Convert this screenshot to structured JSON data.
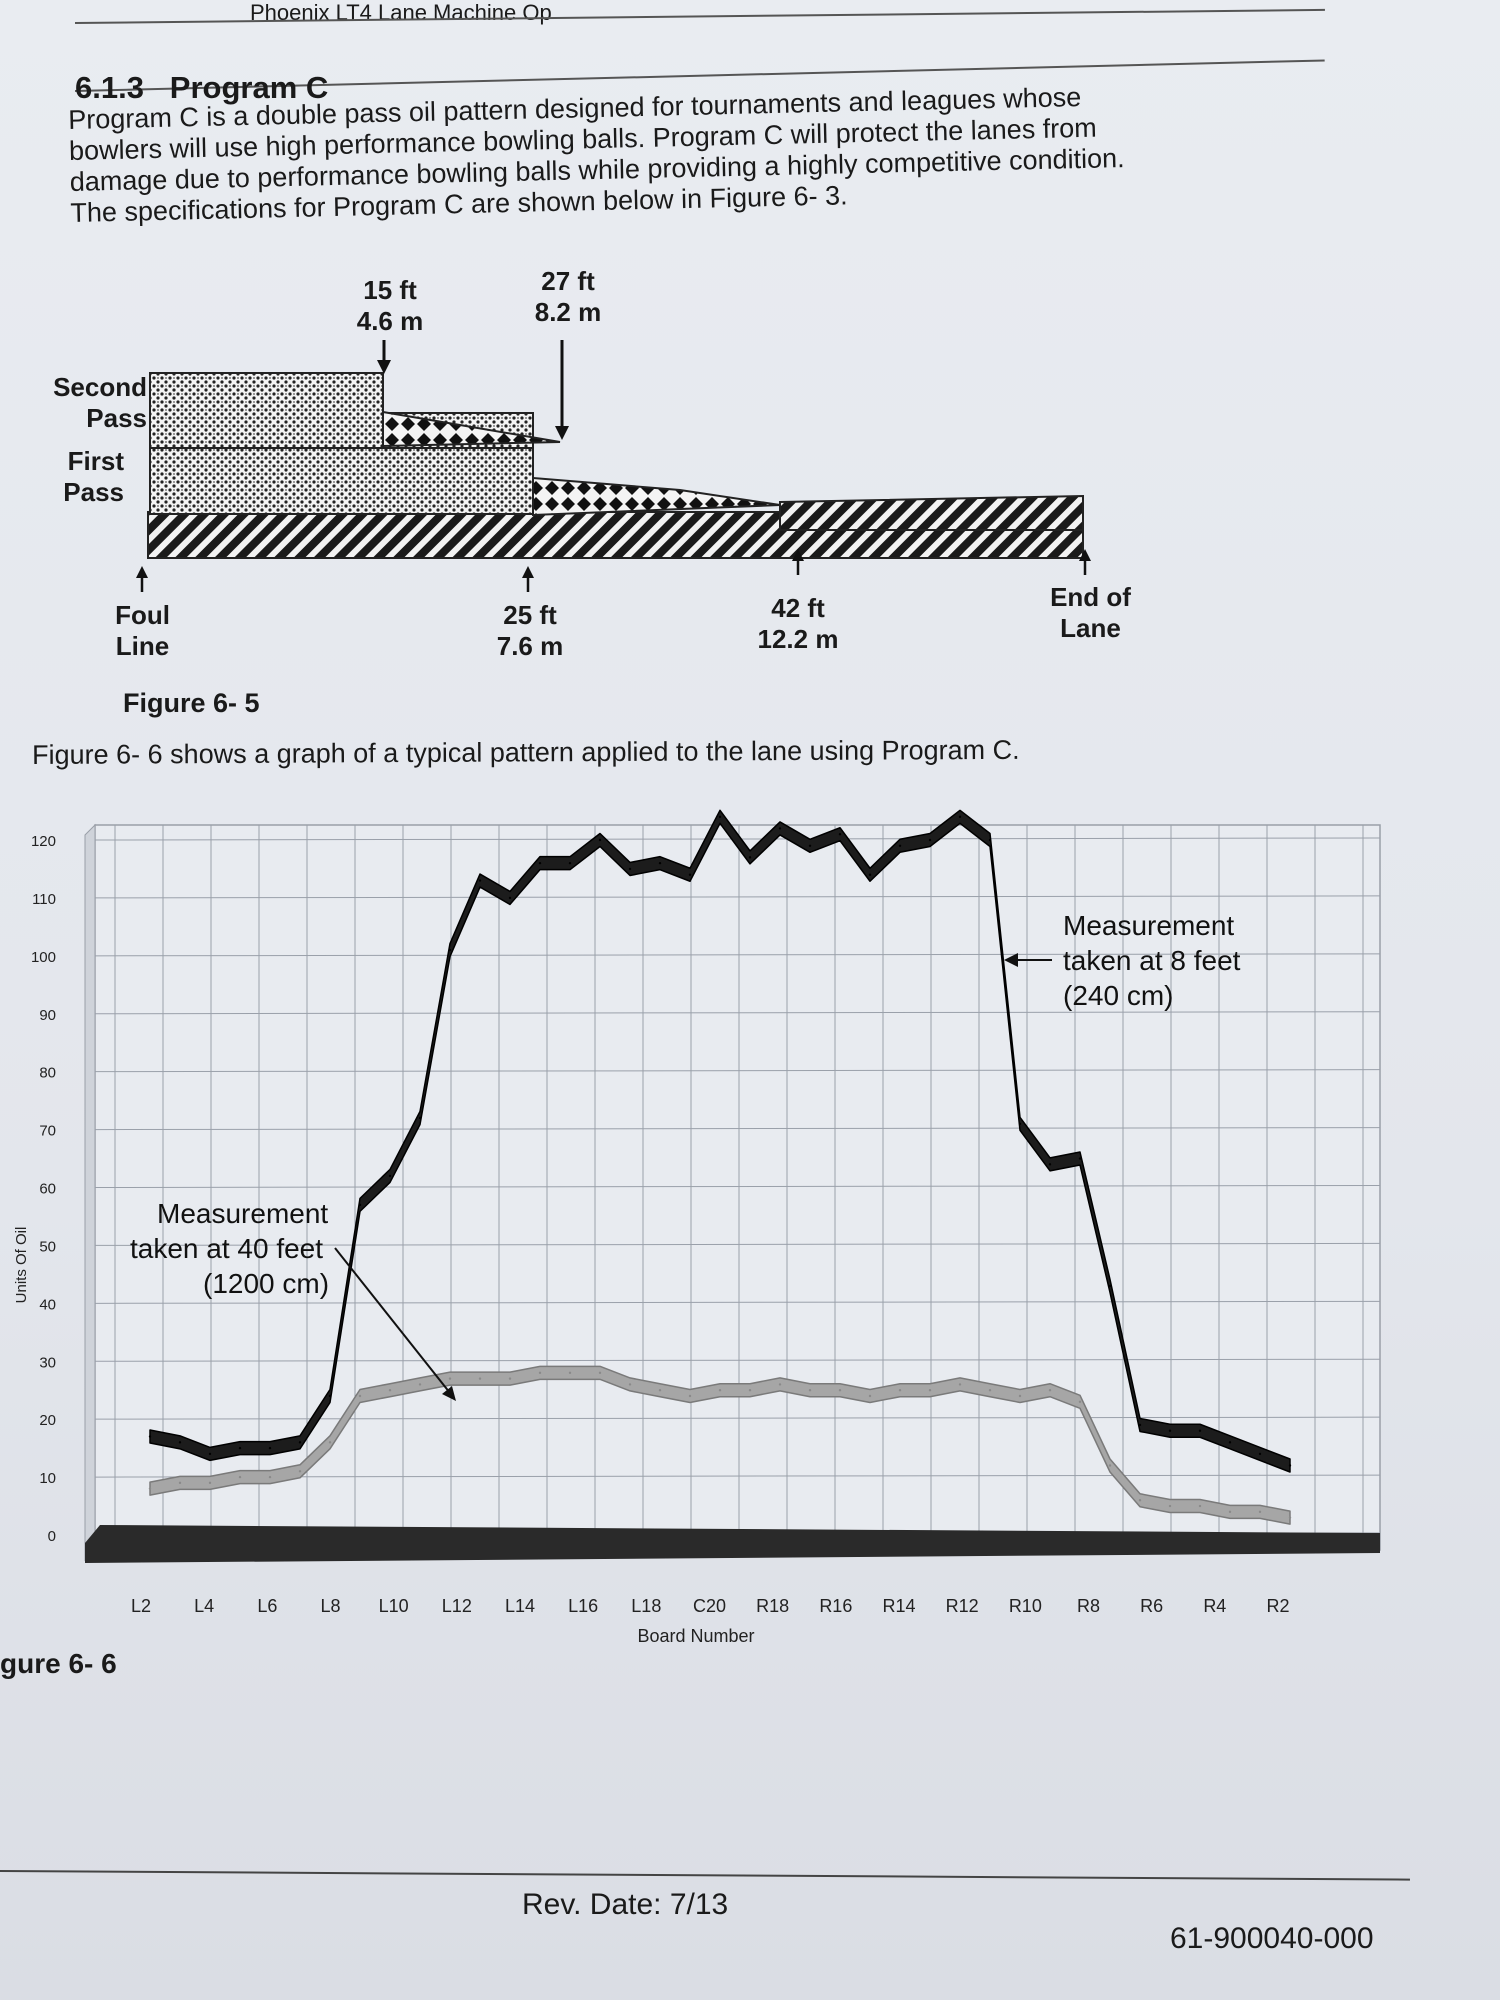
{
  "header": {
    "running_title": "Phoenix LT4 Lane Machine Op"
  },
  "section": {
    "number": "6.1.3",
    "title": "Program C",
    "intro_lines": [
      "Program C is a double pass oil pattern designed for tournaments and leagues whose",
      "bowlers will use high performance bowling balls. Program C will protect the lanes from",
      "damage due to performance bowling balls while providing a highly competitive condition.",
      "The specifications for Program C are shown below in Figure 6- 3."
    ]
  },
  "pattern_figure": {
    "pass_labels": {
      "second_line1": "Second",
      "second_line2": "Pass",
      "first_line1": "First",
      "first_line2": "Pass"
    },
    "top_markers": [
      {
        "ft": "15 ft",
        "m": "4.6 m"
      },
      {
        "ft": "27 ft",
        "m": "8.2 m"
      }
    ],
    "bottom_markers": {
      "foul_line1": "Foul",
      "foul_line2": "Line",
      "m25_ft": "25 ft",
      "m25_m": "7.6 m",
      "m42_ft": "42 ft",
      "m42_m": "12.2 m",
      "end_line1": "End of",
      "end_line2": "Lane"
    },
    "caption": "Figure 6- 5"
  },
  "graph_intro": "Figure 6- 6 shows a graph of a typical pattern applied to the lane using Program C.",
  "chart_data": {
    "type": "line",
    "ylabel": "Units Of Oil",
    "xlabel": "Board Number",
    "ylim": [
      0,
      120
    ],
    "y_ticks": [
      0,
      10,
      20,
      30,
      40,
      50,
      60,
      70,
      80,
      90,
      100,
      110,
      120
    ],
    "x_tick_labels": [
      "L2",
      "L4",
      "L6",
      "L8",
      "L10",
      "L12",
      "L14",
      "L16",
      "L18",
      "C20",
      "R18",
      "R16",
      "R14",
      "R12",
      "R10",
      "R8",
      "R6",
      "R4",
      "R2"
    ],
    "x": [
      1,
      2,
      3,
      4,
      5,
      6,
      7,
      8,
      9,
      10,
      11,
      12,
      13,
      14,
      15,
      16,
      17,
      18,
      19,
      20,
      21,
      22,
      23,
      24,
      25,
      26,
      27,
      28,
      29,
      30,
      31,
      32,
      33,
      34,
      35,
      36,
      37,
      38,
      39
    ],
    "series": [
      {
        "name": "Measurement taken at 8 feet (240 cm)",
        "color": "#1c1c1c",
        "values": [
          17,
          16,
          14,
          15,
          15,
          16,
          24,
          57,
          62,
          72,
          101,
          113,
          110,
          116,
          116,
          120,
          115,
          116,
          114,
          124,
          117,
          122,
          119,
          121,
          114,
          119,
          120,
          124,
          120,
          71,
          64,
          65,
          43,
          19,
          18,
          18,
          16,
          14,
          12
        ]
      },
      {
        "name": "Measurement taken at 40 feet (1200 cm)",
        "color": "#a6a6a6",
        "values": [
          8,
          9,
          9,
          10,
          10,
          11,
          16,
          24,
          25,
          26,
          27,
          27,
          27,
          28,
          28,
          28,
          26,
          25,
          24,
          25,
          25,
          26,
          25,
          25,
          24,
          25,
          25,
          26,
          25,
          24,
          25,
          23,
          12,
          6,
          5,
          5,
          4,
          4,
          3
        ]
      }
    ],
    "annotations": [
      {
        "line1": "Measurement",
        "line2": "taken at 8 feet",
        "line3": "(240 cm)"
      },
      {
        "line1": "Measurement",
        "line2": "taken at 40 feet",
        "line3": "(1200 cm)"
      }
    ],
    "grid": true
  },
  "figure_66_caption": "gure 6- 6",
  "footer": {
    "rev": "Rev. Date:  7/13",
    "doc_number": "61-900040-000"
  }
}
